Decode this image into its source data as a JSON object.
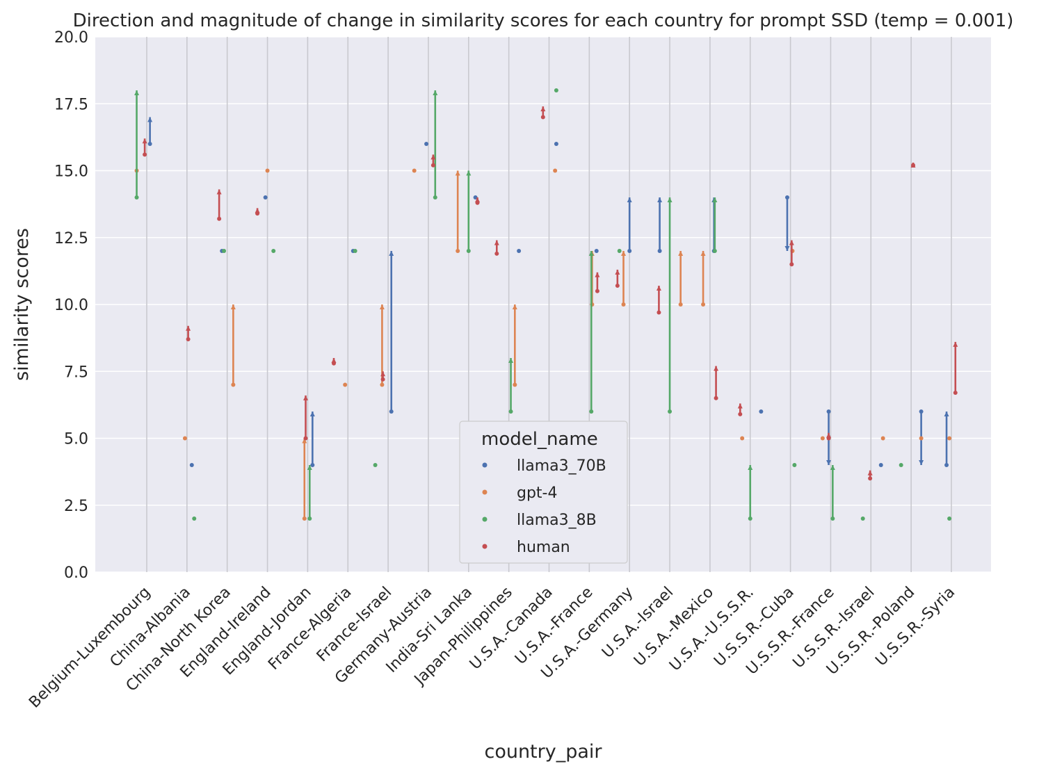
{
  "chart_data": {
    "type": "scatter",
    "title": "Direction and magnitude of change in similarity scores for each country for prompt SSD (temp = 0.001)",
    "xlabel": "country_pair",
    "ylabel": "similarity scores",
    "ylim": [
      0,
      20
    ],
    "yticks": [
      "0.0",
      "2.5",
      "5.0",
      "7.5",
      "10.0",
      "12.5",
      "15.0",
      "17.5",
      "20.0"
    ],
    "grid": true,
    "legend": {
      "title": "model_name",
      "placement": "lower-center"
    },
    "categories": [
      "Belgium-Luxembourg",
      "China-Albania",
      "China-North Korea",
      "England-Ireland",
      "England-Jordan",
      "France-Algeria",
      "France-Israel",
      "Germany-Austria",
      "India-Sri Lanka",
      "Japan-Philippines",
      "U.S.A.-Canada",
      "U.S.A.-France",
      "U.S.A.-Germany",
      "U.S.A.-Israel",
      "U.S.A.-Mexico",
      "U.S.A.-U.S.S.R.",
      "U.S.S.R.-Cuba",
      "U.S.S.R.-France",
      "U.S.S.R.-Israel",
      "U.S.S.R.-Poland",
      "U.S.S.R.-Syria"
    ],
    "series": [
      {
        "name": "llama3_70B",
        "color": "#4c72b0",
        "points": [
          {
            "category": "Belgium-Luxembourg",
            "offset": 0.08,
            "from": 16,
            "to": 17
          },
          {
            "category": "China-Albania",
            "offset": 0.12,
            "from": 4,
            "to": 4
          },
          {
            "category": "China-North Korea",
            "offset": -0.13,
            "from": 12,
            "to": 12
          },
          {
            "category": "England-Ireland",
            "offset": -0.05,
            "from": 14,
            "to": 14
          },
          {
            "category": "England-Jordan",
            "offset": 0.12,
            "from": 4,
            "to": 6
          },
          {
            "category": "France-Algeria",
            "offset": 0.13,
            "from": 12,
            "to": 12
          },
          {
            "category": "France-Israel",
            "offset": 0.08,
            "from": 6,
            "to": 12
          },
          {
            "category": "Germany-Austria",
            "offset": -0.05,
            "from": 16,
            "to": 16
          },
          {
            "category": "India-Sri Lanka",
            "offset": 0.17,
            "from": 14,
            "to": 14
          },
          {
            "category": "Japan-Philippines",
            "offset": 0.25,
            "from": 12,
            "to": 12
          },
          {
            "category": "U.S.A.-Canada",
            "offset": 0.18,
            "from": 16,
            "to": 16
          },
          {
            "category": "U.S.A.-France",
            "offset": 0.18,
            "from": 12,
            "to": 12
          },
          {
            "category": "U.S.A.-Germany",
            "offset": 0.0,
            "from": 12,
            "to": 14
          },
          {
            "category": "U.S.A.-Israel",
            "offset": -0.25,
            "from": 12,
            "to": 14
          },
          {
            "category": "U.S.A.-Mexico",
            "offset": 0.1,
            "from": 12,
            "to": 14
          },
          {
            "category": "U.S.A.-U.S.S.R.",
            "offset": 0.27,
            "from": 6,
            "to": 6
          },
          {
            "category": "U.S.S.R.-Cuba",
            "offset": -0.08,
            "from": 14,
            "to": 12
          },
          {
            "category": "U.S.S.R.-France",
            "offset": -0.05,
            "from": 6,
            "to": 4
          },
          {
            "category": "U.S.S.R.-Israel",
            "offset": 0.25,
            "from": 4,
            "to": 4
          },
          {
            "category": "U.S.S.R.-Poland",
            "offset": 0.25,
            "from": 6,
            "to": 4
          },
          {
            "category": "U.S.S.R.-Syria",
            "offset": -0.12,
            "from": 4,
            "to": 6
          }
        ]
      },
      {
        "name": "gpt-4",
        "color": "#dd8452",
        "points": [
          {
            "category": "Belgium-Luxembourg",
            "offset": -0.25,
            "from": 15,
            "to": 15
          },
          {
            "category": "China-Albania",
            "offset": -0.05,
            "from": 5,
            "to": 5
          },
          {
            "category": "China-North Korea",
            "offset": 0.15,
            "from": 7,
            "to": 10
          },
          {
            "category": "England-Ireland",
            "offset": 0.0,
            "from": 15,
            "to": 15
          },
          {
            "category": "England-Jordan",
            "offset": -0.08,
            "from": 2,
            "to": 5
          },
          {
            "category": "France-Algeria",
            "offset": -0.07,
            "from": 7,
            "to": 7
          },
          {
            "category": "France-Israel",
            "offset": -0.15,
            "from": 7,
            "to": 10
          },
          {
            "category": "Germany-Austria",
            "offset": -0.35,
            "from": 15,
            "to": 15
          },
          {
            "category": "India-Sri Lanka",
            "offset": -0.27,
            "from": 12,
            "to": 15
          },
          {
            "category": "Japan-Philippines",
            "offset": 0.15,
            "from": 7,
            "to": 10
          },
          {
            "category": "U.S.A.-Canada",
            "offset": 0.15,
            "from": 15,
            "to": 15
          },
          {
            "category": "U.S.A.-France",
            "offset": 0.07,
            "from": 10,
            "to": 12
          },
          {
            "category": "U.S.A.-Germany",
            "offset": -0.15,
            "from": 10,
            "to": 12
          },
          {
            "category": "U.S.A.-Israel",
            "offset": 0.27,
            "from": 10,
            "to": 12
          },
          {
            "category": "U.S.A.-Mexico",
            "offset": -0.17,
            "from": 10,
            "to": 12
          },
          {
            "category": "U.S.A.-U.S.S.R.",
            "offset": -0.2,
            "from": 5,
            "to": 5
          },
          {
            "category": "U.S.S.R.-Cuba",
            "offset": 0.05,
            "from": 12,
            "to": 12
          },
          {
            "category": "U.S.S.R.-France",
            "offset": -0.2,
            "from": 5,
            "to": 5
          },
          {
            "category": "U.S.S.R.-Israel",
            "offset": 0.3,
            "from": 5,
            "to": 5
          },
          {
            "category": "U.S.S.R.-Poland",
            "offset": 0.25,
            "from": 5,
            "to": 5
          },
          {
            "category": "U.S.S.R.-Syria",
            "offset": -0.05,
            "from": 5,
            "to": 5
          }
        ]
      },
      {
        "name": "llama3_8B",
        "color": "#55a868",
        "points": [
          {
            "category": "Belgium-Luxembourg",
            "offset": -0.25,
            "from": 14,
            "to": 18
          },
          {
            "category": "China-Albania",
            "offset": 0.18,
            "from": 2,
            "to": 2
          },
          {
            "category": "China-North Korea",
            "offset": -0.08,
            "from": 12,
            "to": 12
          },
          {
            "category": "England-Ireland",
            "offset": 0.15,
            "from": 12,
            "to": 12
          },
          {
            "category": "England-Jordan",
            "offset": 0.05,
            "from": 2,
            "to": 4
          },
          {
            "category": "France-Algeria",
            "offset": 0.18,
            "from": 12,
            "to": 12
          },
          {
            "category": "France-Israel",
            "offset": -0.32,
            "from": 4,
            "to": 4
          },
          {
            "category": "Germany-Austria",
            "offset": 0.17,
            "from": 14,
            "to": 18
          },
          {
            "category": "India-Sri Lanka",
            "offset": 0.0,
            "from": 12,
            "to": 15
          },
          {
            "category": "Japan-Philippines",
            "offset": 0.05,
            "from": 6,
            "to": 8
          },
          {
            "category": "U.S.A.-Canada",
            "offset": 0.18,
            "from": 18,
            "to": 18
          },
          {
            "category": "U.S.A.-France",
            "offset": 0.05,
            "from": 6,
            "to": 12
          },
          {
            "category": "U.S.A.-Germany",
            "offset": -0.25,
            "from": 12,
            "to": 12
          },
          {
            "category": "U.S.A.-Israel",
            "offset": 0.0,
            "from": 6,
            "to": 14
          },
          {
            "category": "U.S.A.-Mexico",
            "offset": 0.12,
            "from": 12,
            "to": 14
          },
          {
            "category": "U.S.A.-U.S.S.R.",
            "offset": 0.0,
            "from": 2,
            "to": 4
          },
          {
            "category": "U.S.S.R.-Cuba",
            "offset": 0.1,
            "from": 4,
            "to": 4
          },
          {
            "category": "U.S.S.R.-France",
            "offset": 0.05,
            "from": 2,
            "to": 4
          },
          {
            "category": "U.S.S.R.-Israel",
            "offset": -0.2,
            "from": 2,
            "to": 2
          },
          {
            "category": "U.S.S.R.-Poland",
            "offset": -0.25,
            "from": 4,
            "to": 4
          },
          {
            "category": "U.S.S.R.-Syria",
            "offset": -0.05,
            "from": 2,
            "to": 2
          }
        ]
      },
      {
        "name": "human",
        "color": "#c44e52",
        "points": [
          {
            "category": "Belgium-Luxembourg",
            "offset": -0.05,
            "from": 15.6,
            "to": 16.2
          },
          {
            "category": "China-Albania",
            "offset": 0.03,
            "from": 8.7,
            "to": 9.2
          },
          {
            "category": "China-North Korea",
            "offset": -0.2,
            "from": 13.2,
            "to": 14.3
          },
          {
            "category": "England-Ireland",
            "offset": -0.25,
            "from": 13.4,
            "to": 13.6
          },
          {
            "category": "England-Jordan",
            "offset": -0.05,
            "from": 5.0,
            "to": 6.6
          },
          {
            "category": "France-Algeria",
            "offset": -0.35,
            "from": 7.8,
            "to": 8.0
          },
          {
            "category": "France-Israel",
            "offset": -0.13,
            "from": 7.2,
            "to": 7.5
          },
          {
            "category": "Germany-Austria",
            "offset": 0.12,
            "from": 15.2,
            "to": 15.6
          },
          {
            "category": "India-Sri Lanka",
            "offset": 0.22,
            "from": 13.8,
            "to": 14.0
          },
          {
            "category": "Japan-Philippines",
            "offset": -0.3,
            "from": 11.9,
            "to": 12.4
          },
          {
            "category": "U.S.A.-Canada",
            "offset": -0.15,
            "from": 17.0,
            "to": 17.4
          },
          {
            "category": "U.S.A.-France",
            "offset": 0.2,
            "from": 10.5,
            "to": 11.2
          },
          {
            "category": "U.S.A.-Germany",
            "offset": -0.3,
            "from": 10.7,
            "to": 11.3
          },
          {
            "category": "U.S.A.-Israel",
            "offset": -0.27,
            "from": 9.7,
            "to": 10.7
          },
          {
            "category": "U.S.A.-Mexico",
            "offset": 0.15,
            "from": 6.5,
            "to": 7.7
          },
          {
            "category": "U.S.A.-U.S.S.R.",
            "offset": -0.25,
            "from": 5.9,
            "to": 6.3
          },
          {
            "category": "U.S.S.R.-Cuba",
            "offset": 0.03,
            "from": 11.5,
            "to": 12.4
          },
          {
            "category": "U.S.S.R.-France",
            "offset": -0.05,
            "from": 5.0,
            "to": 5.2
          },
          {
            "category": "U.S.S.R.-Israel",
            "offset": -0.02,
            "from": 3.5,
            "to": 3.8
          },
          {
            "category": "U.S.S.R.-Poland",
            "offset": 0.05,
            "from": 15.2,
            "to": 15.3
          },
          {
            "category": "U.S.S.R.-Syria",
            "offset": 0.1,
            "from": 6.7,
            "to": 8.6
          }
        ]
      }
    ]
  }
}
